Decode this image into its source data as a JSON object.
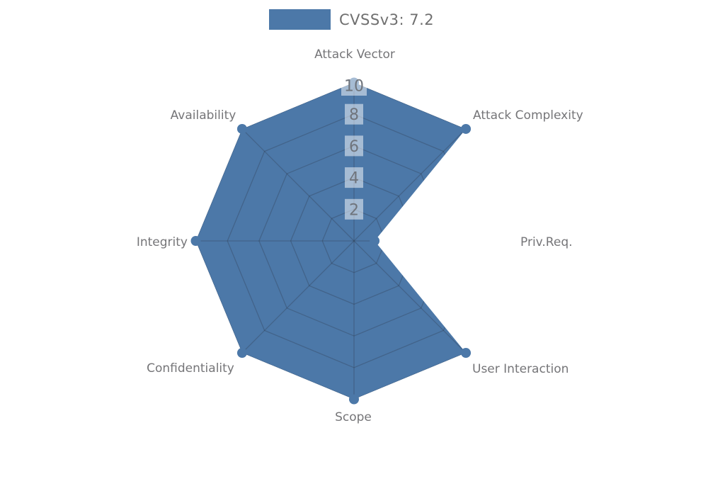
{
  "legend": {
    "label": "CVSSv3: 7.2",
    "swatch_color": "#4c78a8"
  },
  "chart_data": {
    "type": "radar",
    "title": "CVSSv3: 7.2",
    "categories": [
      "Attack Vector",
      "Attack Complexity",
      "Priv.Req.",
      "User Interaction",
      "Scope",
      "Confidentiality",
      "Integrity",
      "Availability"
    ],
    "series": [
      {
        "name": "CVSSv3: 7.2",
        "values": [
          10,
          10,
          1.3,
          10,
          10,
          10,
          10,
          10
        ]
      }
    ],
    "radial_ticks": [
      2,
      4,
      6,
      8,
      10
    ],
    "rlim": [
      0,
      10
    ],
    "grid": true,
    "legend_position": "top",
    "fill_color": "#4c78a8",
    "marker": "circle"
  },
  "colors": {
    "fill": "#4c78a8",
    "grid_line": "rgba(42,52,68,0.30)",
    "axis_label": "#757578",
    "tick_label": "#6f747c",
    "tick_box": "rgba(255,255,255,0.5)",
    "legend_text": "#6f6f6f",
    "background": "#ffffff"
  }
}
